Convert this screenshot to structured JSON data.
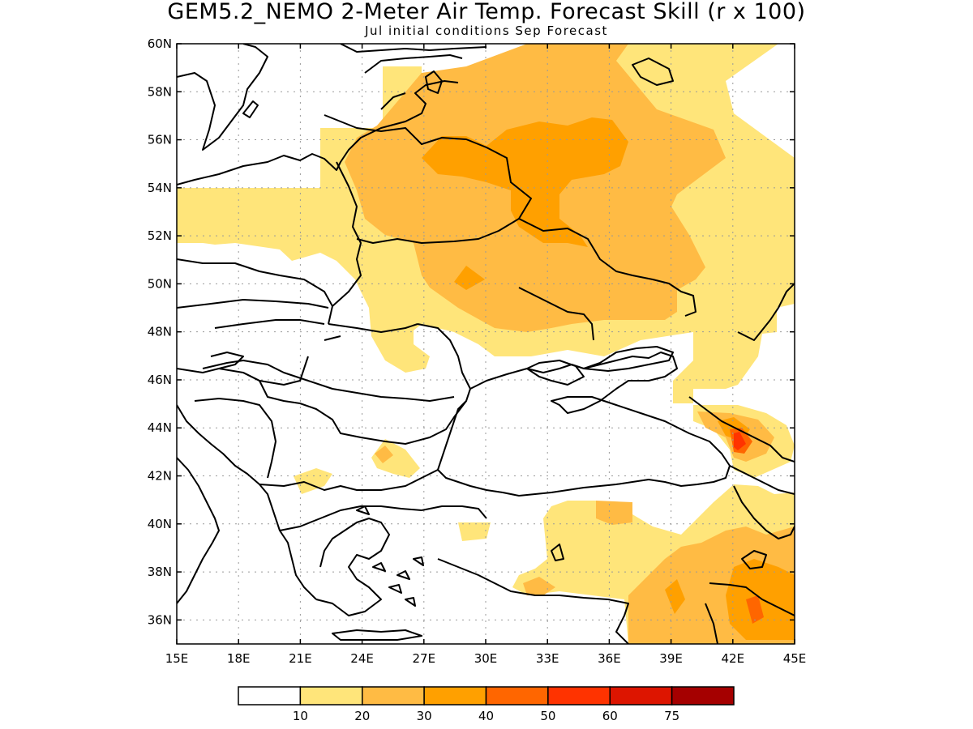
{
  "title": "GEM5.2_NEMO 2-Meter Air Temp. Forecast Skill (r x 100)",
  "subtitle": "Jul initial conditions  Sep Forecast",
  "map": {
    "lon_range": [
      15,
      45
    ],
    "lat_range": [
      35,
      60
    ],
    "lon_ticks": [
      "15E",
      "18E",
      "21E",
      "24E",
      "27E",
      "30E",
      "33E",
      "36E",
      "39E",
      "42E",
      "45E"
    ],
    "lat_ticks": [
      "36N",
      "38N",
      "40N",
      "42N",
      "44N",
      "46N",
      "48N",
      "50N",
      "52N",
      "54N",
      "56N",
      "58N",
      "60N"
    ],
    "grid": true
  },
  "legend": {
    "levels": [
      "10",
      "20",
      "30",
      "40",
      "50",
      "60",
      "75"
    ],
    "colors": [
      "#ffffff",
      "#ffe57a",
      "#ffbb44",
      "#ffa000",
      "#ff6600",
      "#ff3300",
      "#dd1500",
      "#a50000"
    ]
  }
}
